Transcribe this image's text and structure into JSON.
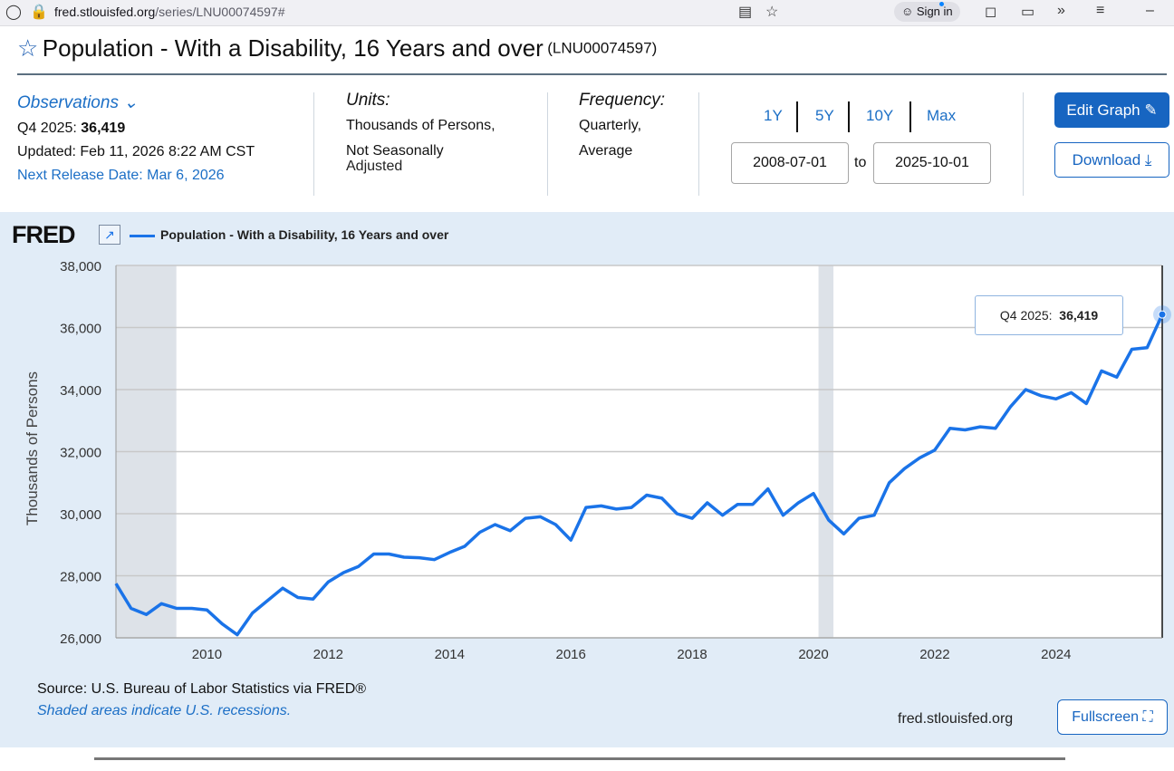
{
  "browser": {
    "url_host": "fred.stlouisfed.org",
    "url_path": "/series/LNU00074597#",
    "sign_in": "Sign in"
  },
  "header": {
    "title": "Population - With a Disability, 16 Years and over",
    "series_id": "(LNU00074597)"
  },
  "meta": {
    "observations_label": "Observations",
    "latest_label": "Q4 2025:",
    "latest_value": "36,419",
    "updated": "Updated: Feb 11, 2026 8:22 AM CST",
    "next_release": "Next Release Date: Mar 6, 2026",
    "units_label": "Units:",
    "units_line1": "Thousands of Persons,",
    "units_line2": "Not Seasonally",
    "units_line3": "Adjusted",
    "frequency_label": "Frequency:",
    "frequency_line1": "Quarterly,",
    "frequency_line2": "Average"
  },
  "range": {
    "buttons": [
      "1Y",
      "5Y",
      "10Y",
      "Max"
    ],
    "start": "2008-07-01",
    "to_label": "to",
    "end": "2025-10-01"
  },
  "actions": {
    "edit_graph": "Edit Graph",
    "download": "Download",
    "fullscreen": "Fullscreen"
  },
  "graph": {
    "logo": "FRED",
    "legend": "Population - With a Disability, 16 Years and over",
    "source": "Source: U.S. Bureau of Labor Statistics via FRED®",
    "recession_note": "Shaded areas indicate U.S. recessions.",
    "site": "fred.stlouisfed.org",
    "tooltip_label": "Q4 2025:",
    "tooltip_value": "36,419",
    "line_color": "#1a73e8"
  },
  "chart_data": {
    "type": "line",
    "ylabel": "Thousands of Persons",
    "ylim": [
      26000,
      38000
    ],
    "yticks": [
      "26,000",
      "28,000",
      "30,000",
      "32,000",
      "34,000",
      "36,000",
      "38,000"
    ],
    "xticks": [
      "2010",
      "2012",
      "2014",
      "2016",
      "2018",
      "2020",
      "2022",
      "2024"
    ],
    "grid": true,
    "recessions": [
      [
        "2008-07-01",
        "2009-06-30"
      ],
      [
        "2020-02-01",
        "2020-04-30"
      ]
    ],
    "series": [
      {
        "name": "Population - With a Disability, 16 Years and over",
        "x": [
          "2008-07-01",
          "2008-10-01",
          "2009-01-01",
          "2009-04-01",
          "2009-07-01",
          "2009-10-01",
          "2010-01-01",
          "2010-04-01",
          "2010-07-01",
          "2010-10-01",
          "2011-01-01",
          "2011-04-01",
          "2011-07-01",
          "2011-10-01",
          "2012-01-01",
          "2012-04-01",
          "2012-07-01",
          "2012-10-01",
          "2013-01-01",
          "2013-04-01",
          "2013-07-01",
          "2013-10-01",
          "2014-01-01",
          "2014-04-01",
          "2014-07-01",
          "2014-10-01",
          "2015-01-01",
          "2015-04-01",
          "2015-07-01",
          "2015-10-01",
          "2016-01-01",
          "2016-04-01",
          "2016-07-01",
          "2016-10-01",
          "2017-01-01",
          "2017-04-01",
          "2017-07-01",
          "2017-10-01",
          "2018-01-01",
          "2018-04-01",
          "2018-07-01",
          "2018-10-01",
          "2019-01-01",
          "2019-04-01",
          "2019-07-01",
          "2019-10-01",
          "2020-01-01",
          "2020-04-01",
          "2020-07-01",
          "2020-10-01",
          "2021-01-01",
          "2021-04-01",
          "2021-07-01",
          "2021-10-01",
          "2022-01-01",
          "2022-04-01",
          "2022-07-01",
          "2022-10-01",
          "2023-01-01",
          "2023-04-01",
          "2023-07-01",
          "2023-10-01",
          "2024-01-01",
          "2024-04-01",
          "2024-07-01",
          "2024-10-01",
          "2025-01-01",
          "2025-04-01",
          "2025-07-01",
          "2025-10-01"
        ],
        "values": [
          27750,
          26950,
          26750,
          27100,
          26950,
          26950,
          26900,
          26450,
          26100,
          26800,
          27200,
          27600,
          27300,
          27250,
          27800,
          28100,
          28300,
          28700,
          28700,
          28600,
          28580,
          28520,
          28750,
          28950,
          29400,
          29650,
          29450,
          29850,
          29900,
          29650,
          29150,
          30200,
          30250,
          30150,
          30200,
          30600,
          30500,
          30000,
          29850,
          30350,
          29950,
          30300,
          30300,
          30800,
          29950,
          30350,
          30650,
          29800,
          29350,
          29850,
          29950,
          31000,
          31450,
          31800,
          32050,
          32750,
          32700,
          32800,
          32750,
          33450,
          34000,
          33800,
          33700,
          33900,
          33550,
          34600,
          34400,
          35300,
          35350,
          36419
        ]
      }
    ]
  }
}
